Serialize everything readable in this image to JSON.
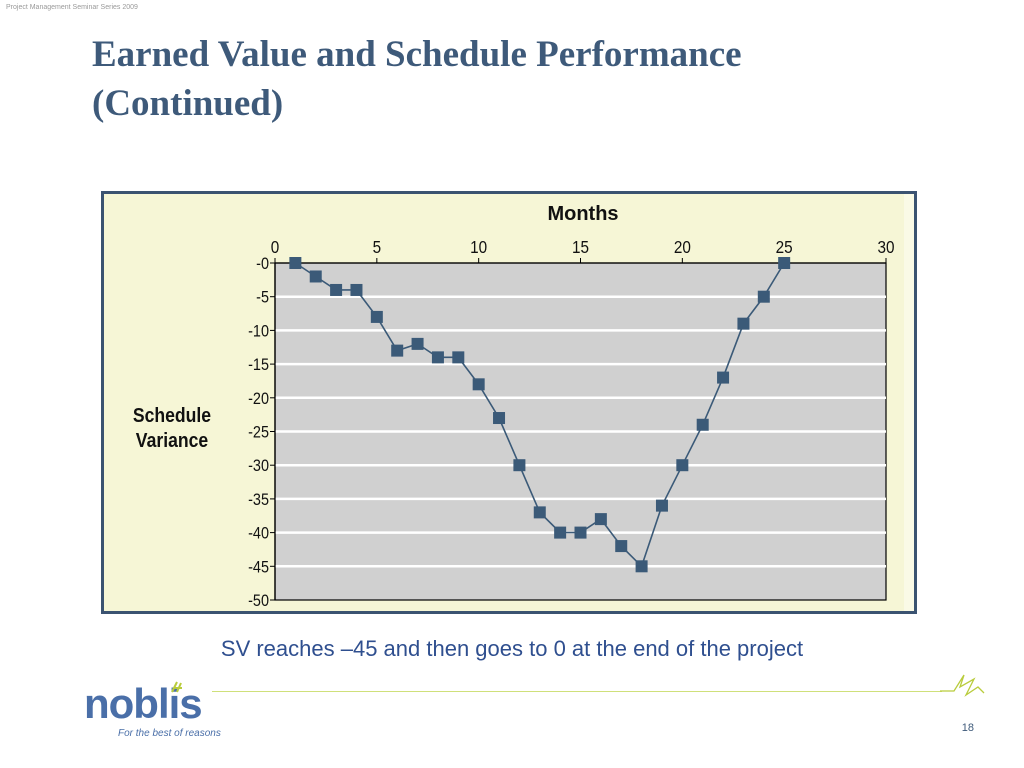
{
  "header": {
    "series_note": "Project Management Seminar Series 2009"
  },
  "slide": {
    "title_line1": "Earned Value and Schedule Performance",
    "title_line2": "(Continued)",
    "caption": "SV reaches –45 and then goes to 0 at the end of the project",
    "page_number": "18"
  },
  "footer": {
    "logo_text": "noblis",
    "tagline": "For the best of reasons"
  },
  "colors": {
    "title": "#3e5a7a",
    "frame_border": "#3b5371",
    "plot_background": "#d0d0d0",
    "chart_background": "#f6f6d6",
    "series": "#3b5a78",
    "caption": "#2f4f8f",
    "accent_green": "#b9cc3c"
  },
  "chart_data": {
    "type": "line",
    "title": "Months",
    "xlabel": "Months",
    "ylabel": "Schedule Variance",
    "ylabel_lines": [
      "Schedule",
      "Variance"
    ],
    "x_axis_position": "top",
    "xlim": [
      0,
      30
    ],
    "ylim": [
      -50,
      0
    ],
    "x_ticks": [
      0,
      5,
      10,
      15,
      20,
      25,
      30
    ],
    "x_tick_labels": [
      "0",
      "5",
      "10",
      "15",
      "20",
      "25",
      "30"
    ],
    "y_ticks": [
      0,
      -5,
      -10,
      -15,
      -20,
      -25,
      -30,
      -35,
      -40,
      -45,
      -50
    ],
    "y_tick_labels": [
      "-0",
      "-5",
      "-10",
      "-15",
      "-20",
      "-25",
      "-30",
      "-35",
      "-40",
      "-45",
      "-50"
    ],
    "grid": true,
    "legend": "none",
    "marker": "square",
    "series": [
      {
        "x": [
          1,
          2,
          3,
          4,
          5,
          6,
          7,
          8,
          9,
          10,
          11,
          12,
          13,
          14,
          15,
          16,
          17,
          18,
          19,
          20,
          21,
          22,
          23,
          24,
          25
        ],
        "values": [
          0,
          -2,
          -4,
          -4,
          -8,
          -13,
          -12,
          -14,
          -14,
          -18,
          -23,
          -30,
          -37,
          -40,
          -40,
          -38,
          -42,
          -45,
          -36,
          -30,
          -24,
          -17,
          -9,
          -5,
          0
        ]
      }
    ]
  }
}
